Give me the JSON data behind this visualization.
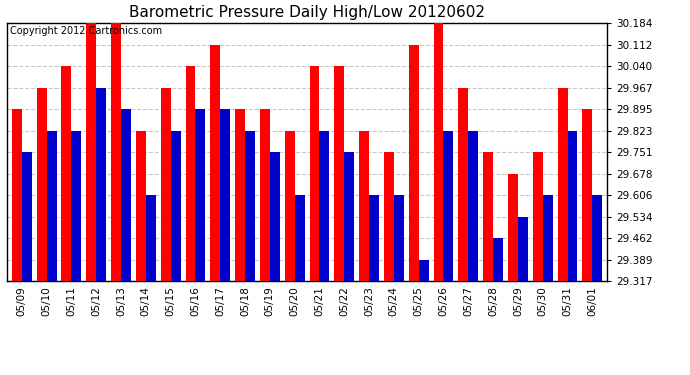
{
  "title": "Barometric Pressure Daily High/Low 20120602",
  "copyright": "Copyright 2012 Cartronics.com",
  "dates": [
    "05/09",
    "05/10",
    "05/11",
    "05/12",
    "05/13",
    "05/14",
    "05/15",
    "05/16",
    "05/17",
    "05/18",
    "05/19",
    "05/20",
    "05/21",
    "05/22",
    "05/23",
    "05/24",
    "05/25",
    "05/26",
    "05/27",
    "05/28",
    "05/29",
    "05/30",
    "05/31",
    "06/01"
  ],
  "highs": [
    29.895,
    29.967,
    30.04,
    30.184,
    30.184,
    29.823,
    29.967,
    30.04,
    30.112,
    29.895,
    29.895,
    29.823,
    30.04,
    30.04,
    29.823,
    29.751,
    30.112,
    30.184,
    29.967,
    29.751,
    29.678,
    29.751,
    29.967,
    29.895
  ],
  "lows": [
    29.751,
    29.823,
    29.823,
    29.967,
    29.895,
    29.606,
    29.823,
    29.895,
    29.895,
    29.823,
    29.751,
    29.606,
    29.823,
    29.751,
    29.606,
    29.606,
    29.389,
    29.823,
    29.823,
    29.462,
    29.534,
    29.606,
    29.823,
    29.606
  ],
  "bar_width": 0.4,
  "ylim_min": 29.317,
  "ylim_max": 30.184,
  "yticks": [
    29.317,
    29.389,
    29.462,
    29.534,
    29.606,
    29.678,
    29.751,
    29.823,
    29.895,
    29.967,
    30.04,
    30.112,
    30.184
  ],
  "high_color": "#FF0000",
  "low_color": "#0000CC",
  "bg_color": "#FFFFFF",
  "plot_bg_color": "#FFFFFF",
  "grid_color": "#BBBBBB",
  "title_fontsize": 11,
  "tick_fontsize": 7.5,
  "copyright_fontsize": 7
}
